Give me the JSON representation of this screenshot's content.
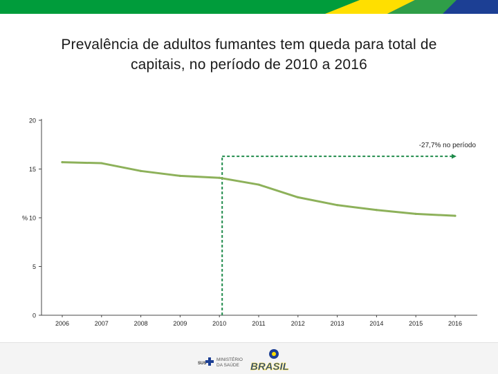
{
  "slide": {
    "title_line1": "Prevalência de adultos fumantes tem queda para total de",
    "title_line2": "capitais, no período de 2010 a 2016"
  },
  "footer": {
    "sus_label": "SUS",
    "ministry_label_line1": "MINISTÉRIO",
    "ministry_label_line2": "DA SAÚDE",
    "brasil_logo_text": "BRASIL"
  },
  "colors": {
    "series": "#8db15a",
    "annotation": "#1e8a4a",
    "banner_green": "#009c3b",
    "banner_yellow": "#ffdf00",
    "banner_blue": "#1c3f94"
  },
  "chart_data": {
    "type": "line",
    "title": "",
    "xlabel": "",
    "ylabel": "%",
    "x": [
      "2006",
      "2007",
      "2008",
      "2009",
      "2010",
      "2011",
      "2012",
      "2013",
      "2014",
      "2015",
      "2016"
    ],
    "ylim": [
      0,
      20
    ],
    "yticks": [
      0,
      5,
      10,
      15,
      20
    ],
    "grid": false,
    "series": [
      {
        "values": [
          15.7,
          15.6,
          14.8,
          14.3,
          14.1,
          13.4,
          12.1,
          11.3,
          10.8,
          10.4,
          10.2
        ]
      }
    ],
    "annotation": {
      "text": "-27,7% no período",
      "from_x": "2010",
      "to_x": "2016",
      "level": 16.3
    }
  }
}
